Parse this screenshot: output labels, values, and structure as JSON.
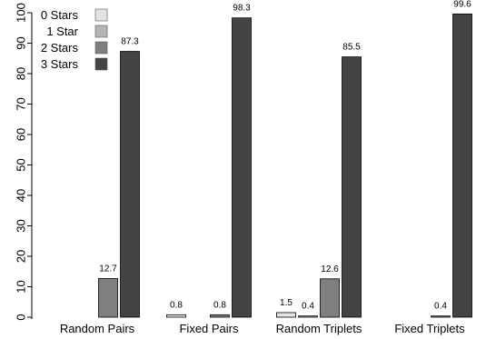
{
  "chart_data": {
    "type": "bar",
    "title": "",
    "xlabel": "",
    "ylabel": "",
    "ylim": [
      0,
      100
    ],
    "yticks": [
      0,
      10,
      20,
      30,
      40,
      50,
      60,
      70,
      80,
      90,
      100
    ],
    "categories": [
      "Random Pairs",
      "Fixed Pairs",
      "Random Triplets",
      "Fixed Triplets"
    ],
    "series": [
      {
        "name": "0 Stars",
        "color": "#e4e4e4",
        "values": [
          0,
          0.8,
          1.5,
          0
        ],
        "labels": [
          "",
          "0.8",
          "1.5",
          ""
        ]
      },
      {
        "name": "1 Star",
        "color": "#b5b5b5",
        "values": [
          0,
          0,
          0.4,
          0
        ],
        "labels": [
          "",
          "",
          "0.4",
          ""
        ]
      },
      {
        "name": "2 Stars",
        "color": "#7f7f7f",
        "values": [
          12.7,
          0.8,
          12.6,
          0.4
        ],
        "labels": [
          "12.7",
          "0.8",
          "12.6",
          "0.4"
        ]
      },
      {
        "name": "3 Stars",
        "color": "#444444",
        "values": [
          87.3,
          98.3,
          85.5,
          99.6
        ],
        "labels": [
          "87.3",
          "98.3",
          "85.5",
          "99.6"
        ]
      }
    ],
    "legend_position": "top-left",
    "grid": false
  }
}
